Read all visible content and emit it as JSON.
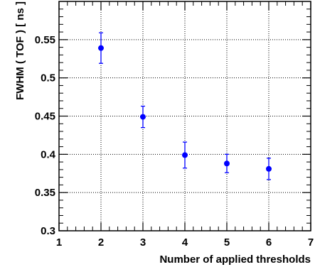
{
  "chart_data": {
    "type": "scatter",
    "title": "",
    "xlabel": "Number of applied thresholds",
    "ylabel": "FWHM ( TOF ) [ ns ]",
    "xlim": [
      1,
      7
    ],
    "ylim": [
      0.3,
      0.6
    ],
    "x_tick_labels": [
      "1",
      "2",
      "3",
      "4",
      "5",
      "6",
      "7"
    ],
    "y_tick_labels": [
      "0.3",
      "0.35",
      "0.4",
      "0.45",
      "0.5",
      "0.55"
    ],
    "grid": true,
    "marker_color": "#0000ff",
    "series": [
      {
        "x": [
          2,
          3,
          4,
          5,
          6
        ],
        "y": [
          0.539,
          0.449,
          0.399,
          0.388,
          0.381
        ],
        "y_err": [
          0.02,
          0.014,
          0.017,
          0.012,
          0.014
        ]
      }
    ]
  }
}
